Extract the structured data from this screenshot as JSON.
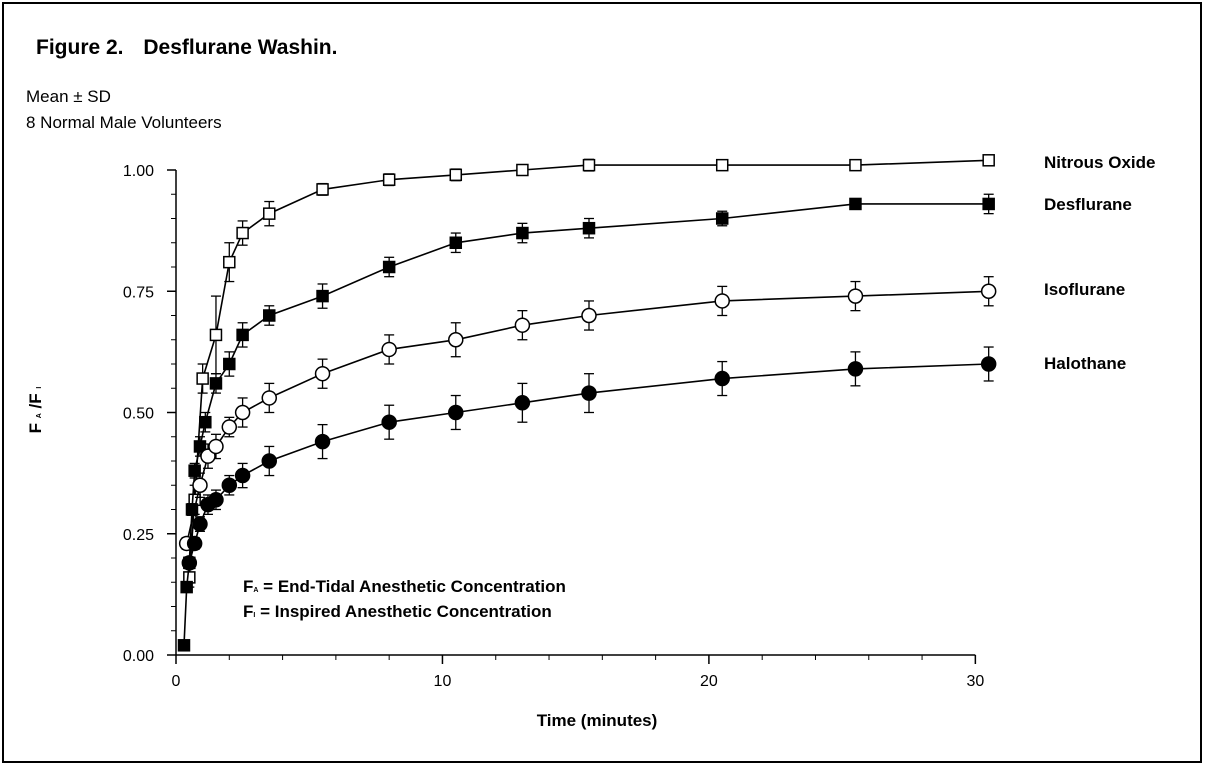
{
  "figure": {
    "label": "Figure 2.",
    "title": "Desflurane Washin.",
    "notes": [
      "Mean ± SD",
      "8 Normal Male Volunteers"
    ]
  },
  "legend_box": {
    "lines": [
      {
        "main": "F",
        "sub": "A",
        "text": " = End-Tidal Anesthetic Concentration"
      },
      {
        "main": "F",
        "sub": "I",
        "text": " = Inspired Anesthetic Concentration"
      }
    ]
  },
  "colors": {
    "ink": "#000000",
    "open_fill": "#ffffff",
    "filled_fill": "#000000"
  },
  "chart_data": {
    "type": "line",
    "title": "Desflurane Washin.",
    "xlabel": "Time (minutes)",
    "ylabel": {
      "main": "F",
      "sub1": "A",
      "slash": "/F",
      "sub2": "I"
    },
    "xlim": [
      0,
      31
    ],
    "ylim": [
      0,
      1.0
    ],
    "x_ticks": [
      0,
      10,
      20,
      30
    ],
    "y_ticks": [
      0.0,
      0.25,
      0.5,
      0.75,
      1.0
    ],
    "x_tick_labels": [
      "0",
      "10",
      "20",
      "30"
    ],
    "y_tick_labels": [
      "0.00",
      "0.25",
      "0.50",
      "0.75",
      "1.00"
    ],
    "grid": false,
    "series": [
      {
        "name": "Nitrous Oxide",
        "marker": "square-open",
        "x": [
          0.5,
          0.7,
          1.0,
          1.5,
          2.0,
          2.5,
          3.5,
          5.5,
          8.0,
          10.5,
          13.0,
          15.5,
          20.5,
          25.5,
          30.5
        ],
        "y": [
          0.16,
          0.32,
          0.57,
          0.66,
          0.81,
          0.87,
          0.91,
          0.96,
          0.98,
          0.99,
          1.0,
          1.01,
          1.01,
          1.01,
          1.02
        ],
        "sd": [
          0.02,
          0.03,
          0.03,
          0.08,
          0.04,
          0.025,
          0.025,
          0.012,
          0.012,
          0.012,
          0.006,
          0.012,
          0.006,
          0.006,
          0.006
        ]
      },
      {
        "name": "Desflurane",
        "marker": "square-filled",
        "x": [
          0.3,
          0.4,
          0.5,
          0.6,
          0.7,
          0.9,
          1.1,
          1.5,
          2.0,
          2.5,
          3.5,
          5.5,
          8.0,
          10.5,
          13.0,
          15.5,
          20.5,
          25.5,
          30.5
        ],
        "y": [
          0.02,
          0.14,
          0.19,
          0.3,
          0.38,
          0.43,
          0.48,
          0.56,
          0.6,
          0.66,
          0.7,
          0.74,
          0.8,
          0.85,
          0.87,
          0.88,
          0.9,
          0.93,
          0.93
        ],
        "sd": [
          0.005,
          0.01,
          0.01,
          0.012,
          0.015,
          0.02,
          0.02,
          0.02,
          0.025,
          0.025,
          0.02,
          0.025,
          0.02,
          0.02,
          0.02,
          0.02,
          0.015,
          0.008,
          0.02
        ]
      },
      {
        "name": "Isoflurane",
        "marker": "circle-open",
        "x": [
          0.4,
          0.9,
          1.2,
          1.5,
          2.0,
          2.5,
          3.5,
          5.5,
          8.0,
          10.5,
          13.0,
          15.5,
          20.5,
          25.5,
          30.5
        ],
        "y": [
          0.23,
          0.35,
          0.41,
          0.43,
          0.47,
          0.5,
          0.53,
          0.58,
          0.63,
          0.65,
          0.68,
          0.7,
          0.73,
          0.74,
          0.75
        ],
        "sd": [
          0.012,
          0.025,
          0.025,
          0.025,
          0.02,
          0.03,
          0.03,
          0.03,
          0.03,
          0.035,
          0.03,
          0.03,
          0.03,
          0.03,
          0.03
        ]
      },
      {
        "name": "Halothane",
        "marker": "circle-filled",
        "x": [
          0.5,
          0.7,
          0.9,
          1.2,
          1.5,
          2.0,
          2.5,
          3.5,
          5.5,
          8.0,
          10.5,
          13.0,
          15.5,
          20.5,
          25.5,
          30.5
        ],
        "y": [
          0.19,
          0.23,
          0.27,
          0.31,
          0.32,
          0.35,
          0.37,
          0.4,
          0.44,
          0.48,
          0.5,
          0.52,
          0.54,
          0.57,
          0.59,
          0.6
        ],
        "sd": [
          0.012,
          0.012,
          0.015,
          0.02,
          0.02,
          0.02,
          0.025,
          0.03,
          0.035,
          0.035,
          0.035,
          0.04,
          0.04,
          0.035,
          0.035,
          0.035
        ]
      }
    ]
  }
}
